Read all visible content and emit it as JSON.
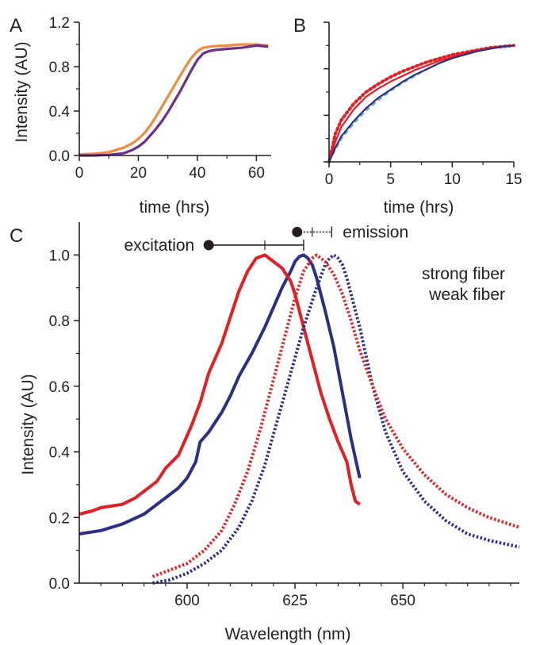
{
  "panels": [
    "A",
    "B",
    "C"
  ],
  "chart_data": [
    {
      "panel": "A",
      "type": "line",
      "xlabel": "time (hrs)",
      "ylabel": "Intensity (AU)",
      "xlim": [
        0,
        65
      ],
      "ylim": [
        0,
        1.2
      ],
      "xticks": [
        "0",
        "20",
        "40",
        "60"
      ],
      "yticks": [
        "0.0",
        "0.4",
        "0.8",
        "1.2"
      ],
      "series": [
        {
          "color": "#f08a3c",
          "x": [
            0,
            5,
            10,
            15,
            18,
            20,
            22,
            24,
            26,
            28,
            30,
            32,
            34,
            36,
            38,
            40,
            42,
            44,
            46,
            50,
            55,
            60,
            64
          ],
          "y": [
            0.01,
            0.015,
            0.03,
            0.07,
            0.11,
            0.15,
            0.2,
            0.27,
            0.35,
            0.44,
            0.53,
            0.62,
            0.71,
            0.8,
            0.88,
            0.94,
            0.97,
            0.98,
            0.985,
            0.99,
            1.0,
            1.0,
            0.99
          ]
        },
        {
          "color": "#6a2f8f",
          "x": [
            0,
            5,
            10,
            15,
            18,
            20,
            22,
            24,
            26,
            28,
            30,
            32,
            34,
            36,
            38,
            40,
            42,
            44,
            46,
            50,
            55,
            60,
            64
          ],
          "y": [
            0.0,
            0.0,
            0.005,
            0.02,
            0.05,
            0.08,
            0.12,
            0.18,
            0.24,
            0.31,
            0.39,
            0.48,
            0.57,
            0.67,
            0.77,
            0.86,
            0.92,
            0.94,
            0.95,
            0.96,
            0.97,
            0.99,
            0.98
          ]
        }
      ]
    },
    {
      "panel": "B",
      "type": "line",
      "xlabel": "time (hrs)",
      "ylabel": "",
      "xlim": [
        0,
        15
      ],
      "ylim": [
        0,
        1.2
      ],
      "xticks": [
        "0",
        "5",
        "10",
        "15"
      ],
      "series": [
        {
          "color": "#e31e24",
          "dash": "dotted",
          "x": [
            0,
            0.5,
            1,
            2,
            3,
            4,
            5,
            6,
            7,
            8,
            9,
            10,
            11,
            12,
            13,
            14,
            15
          ],
          "y": [
            0,
            0.24,
            0.36,
            0.5,
            0.6,
            0.67,
            0.73,
            0.78,
            0.82,
            0.86,
            0.89,
            0.92,
            0.94,
            0.96,
            0.98,
            0.99,
            1.0
          ]
        },
        {
          "color": "#e31e24",
          "x": [
            0,
            0.5,
            1,
            2,
            3,
            4,
            5,
            6,
            7,
            8,
            9,
            10,
            11,
            12,
            13,
            14,
            15
          ],
          "y": [
            0,
            0.17,
            0.3,
            0.45,
            0.56,
            0.63,
            0.69,
            0.74,
            0.79,
            0.83,
            0.87,
            0.9,
            0.93,
            0.95,
            0.97,
            0.99,
            1.0
          ]
        },
        {
          "color": "#5aaed8",
          "dash": "dashed",
          "x": [
            0,
            0.5,
            1,
            2,
            3,
            4,
            5,
            6,
            7,
            8,
            9,
            10,
            11,
            12,
            13,
            14,
            15
          ],
          "y": [
            0,
            0.1,
            0.2,
            0.33,
            0.44,
            0.53,
            0.61,
            0.68,
            0.74,
            0.8,
            0.85,
            0.89,
            0.92,
            0.95,
            0.97,
            0.99,
            1.0
          ]
        },
        {
          "color": "#2b2f86",
          "x": [
            0,
            0.5,
            1,
            2,
            3,
            4,
            5,
            6,
            7,
            8,
            9,
            10,
            11,
            12,
            13,
            14,
            15
          ],
          "y": [
            0,
            0.12,
            0.22,
            0.35,
            0.46,
            0.55,
            0.62,
            0.69,
            0.75,
            0.8,
            0.85,
            0.89,
            0.92,
            0.95,
            0.97,
            0.99,
            1.0
          ]
        }
      ]
    },
    {
      "panel": "C",
      "type": "line",
      "xlabel": "Wavelength (nm)",
      "ylabel": "Intensity (AU)",
      "xlim": [
        575,
        677
      ],
      "ylim": [
        0,
        1.1
      ],
      "xticks": [
        "600",
        "625",
        "650"
      ],
      "yticks": [
        "0.0",
        "0.2",
        "0.4",
        "0.6",
        "0.8",
        "1.0"
      ],
      "legend": [
        "strong fiber",
        "weak fiber"
      ],
      "legend_colors": [
        "#2b2f86",
        "#e31e24"
      ],
      "annotations": {
        "excitation": {
          "label": "excitation",
          "marker_x": 605,
          "end_x": 627,
          "tick_x": 618,
          "y": 1.03
        },
        "emission": {
          "label": "emission",
          "marker_x": 625.5,
          "end_x": 633.5,
          "tick_x": 629,
          "y": 1.07
        }
      },
      "series": [
        {
          "name": "strong fiber",
          "color": "#2b2f86",
          "dash": "solid",
          "x": [
            575,
            580,
            585,
            590,
            595,
            598,
            600,
            602,
            603,
            605,
            608,
            610,
            612,
            615,
            618,
            620,
            622,
            624,
            625,
            626,
            627,
            628,
            629,
            630,
            632,
            634,
            636,
            638,
            640
          ],
          "y": [
            0.15,
            0.16,
            0.18,
            0.21,
            0.26,
            0.29,
            0.32,
            0.37,
            0.43,
            0.46,
            0.52,
            0.57,
            0.63,
            0.7,
            0.78,
            0.84,
            0.9,
            0.95,
            0.98,
            0.995,
            1.0,
            0.99,
            0.97,
            0.93,
            0.83,
            0.72,
            0.58,
            0.44,
            0.32
          ]
        },
        {
          "name": "weak fiber",
          "color": "#e31e24",
          "dash": "solid",
          "x": [
            575,
            578,
            580,
            585,
            588,
            590,
            593,
            595,
            598,
            600,
            601,
            603,
            605,
            608,
            610,
            612,
            614,
            616,
            618,
            620,
            622,
            624,
            625,
            627,
            629,
            631,
            633,
            635,
            637,
            638,
            639,
            640
          ],
          "y": [
            0.21,
            0.22,
            0.23,
            0.24,
            0.26,
            0.28,
            0.31,
            0.35,
            0.39,
            0.45,
            0.48,
            0.55,
            0.64,
            0.73,
            0.81,
            0.89,
            0.95,
            0.99,
            1.0,
            0.98,
            0.96,
            0.92,
            0.88,
            0.78,
            0.68,
            0.58,
            0.5,
            0.43,
            0.37,
            0.3,
            0.25,
            0.24
          ]
        },
        {
          "name": "strong fiber",
          "color": "#2b2f86",
          "dash": "dotted",
          "x": [
            592,
            596,
            600,
            604,
            608,
            612,
            615,
            618,
            621,
            624,
            627,
            630,
            632,
            633,
            634,
            635,
            636,
            637,
            638,
            640,
            643,
            646,
            650,
            655,
            660,
            665,
            670,
            677
          ],
          "y": [
            0.0,
            0.01,
            0.03,
            0.06,
            0.1,
            0.17,
            0.25,
            0.36,
            0.5,
            0.64,
            0.78,
            0.9,
            0.97,
            0.99,
            1.0,
            0.99,
            0.97,
            0.93,
            0.88,
            0.78,
            0.6,
            0.46,
            0.34,
            0.25,
            0.19,
            0.15,
            0.13,
            0.11
          ]
        },
        {
          "name": "weak fiber",
          "color": "#e31e24",
          "dash": "dotted",
          "x": [
            592,
            596,
            600,
            604,
            608,
            611,
            614,
            617,
            620,
            623,
            625,
            627,
            629,
            630,
            631,
            632,
            634,
            636,
            638,
            640,
            643,
            646,
            650,
            655,
            660,
            665,
            670,
            677
          ],
          "y": [
            0.02,
            0.04,
            0.06,
            0.1,
            0.16,
            0.24,
            0.34,
            0.47,
            0.62,
            0.77,
            0.87,
            0.95,
            0.99,
            1.0,
            0.99,
            0.98,
            0.94,
            0.88,
            0.8,
            0.71,
            0.6,
            0.5,
            0.41,
            0.33,
            0.27,
            0.23,
            0.2,
            0.17
          ]
        }
      ]
    }
  ]
}
